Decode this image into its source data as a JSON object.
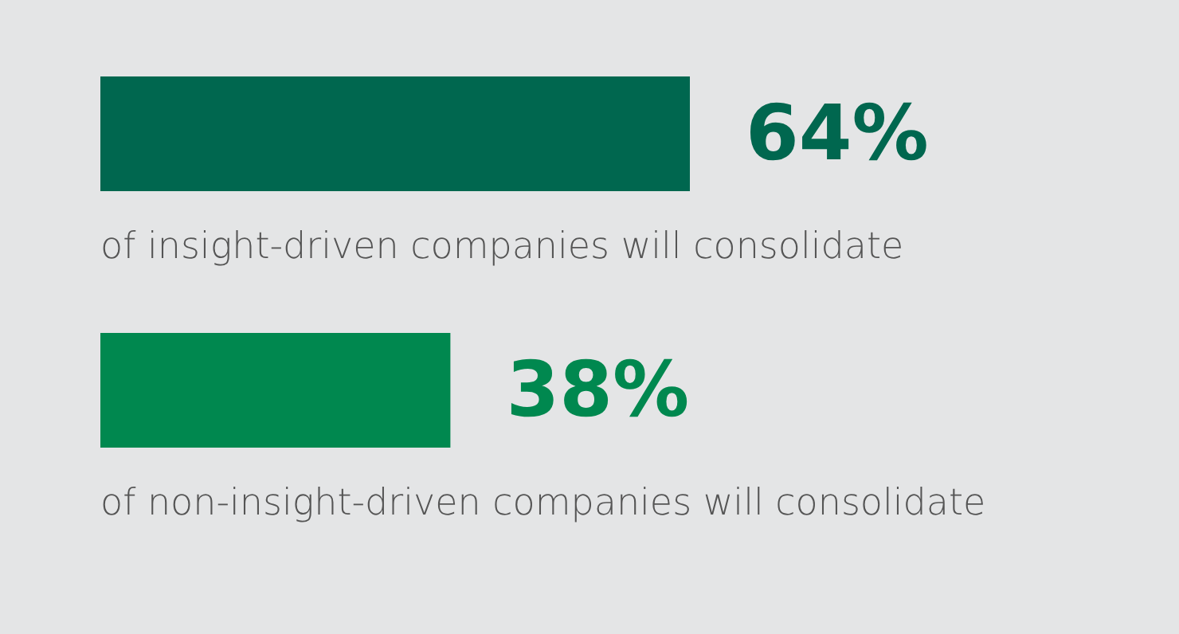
{
  "chart_data": {
    "type": "bar",
    "orientation": "horizontal",
    "categories": [
      "of insight-driven companies will consolidate",
      "of non-insight-driven companies will consolidate"
    ],
    "values": [
      64,
      38
    ],
    "colors": [
      "#00674f",
      "#00884f"
    ],
    "value_labels": [
      "64%",
      "38%"
    ]
  }
}
